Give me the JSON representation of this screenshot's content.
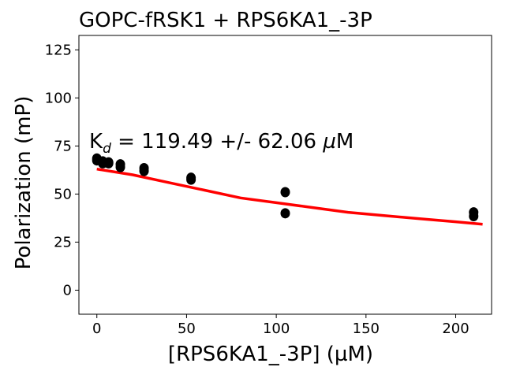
{
  "chart_data": {
    "type": "scatter",
    "title": "GOPC-fRSK1 + RPS6KA1_-3P",
    "xlabel": "[RPS6KA1_-3P] (µM)",
    "ylabel": "Polarization (mP)",
    "xlim": [
      -10,
      220
    ],
    "ylim": [
      -12.5,
      132.5
    ],
    "x_ticks": [
      0,
      50,
      100,
      150,
      200
    ],
    "y_ticks": [
      0,
      25,
      50,
      75,
      100,
      125
    ],
    "grid": false,
    "annotation": {
      "prefix": "K",
      "subscript": "d",
      "text": " = 119.49 +/- 62.06 ",
      "unit_symbol": "µ",
      "unit": "M"
    },
    "series": [
      {
        "kind": "points",
        "color": "#000000",
        "x": [
          0,
          0,
          3.28,
          3.28,
          6.56,
          6.56,
          13.1,
          13.1,
          26.3,
          26.3,
          52.5,
          52.5,
          105,
          105,
          210,
          210
        ],
        "y": [
          68.5,
          67.5,
          67,
          66,
          66.5,
          66,
          65.5,
          64,
          63.5,
          62,
          58.5,
          57.5,
          51,
          40,
          40.5,
          38.5
        ]
      },
      {
        "kind": "fit",
        "color": "#ff0000",
        "x": [
          0,
          20,
          40,
          60,
          80,
          100,
          120,
          140,
          160,
          180,
          200,
          215
        ],
        "y": [
          63,
          60,
          56,
          52,
          48,
          45.5,
          43,
          40.5,
          38.8,
          37.2,
          35.6,
          34.3
        ]
      }
    ]
  }
}
